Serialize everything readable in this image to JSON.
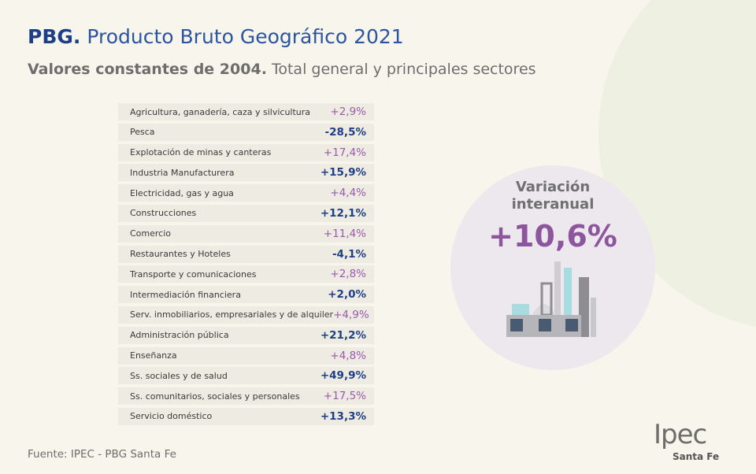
{
  "header": {
    "title_bold": "PBG.",
    "title_rest": "Producto Bruto Geográfico 2021",
    "subtitle_bold": "Valores constantes de 2004.",
    "subtitle_rest": "Total general y principales sectores"
  },
  "table": {
    "rows": [
      [
        "Agricultura, ganadería, caza y silvicultura",
        "+2,9%"
      ],
      [
        "Pesca",
        "-28,5%"
      ],
      [
        "Explotación de minas y canteras",
        "+17,4%"
      ],
      [
        "Industria Manufacturera",
        "+15,9%"
      ],
      [
        "Electricidad, gas y agua",
        "+4,4%"
      ],
      [
        "Construcciones",
        "+12,1%"
      ],
      [
        "Comercio",
        "+11,4%"
      ],
      [
        "Restaurantes y Hoteles",
        "-4,1%"
      ],
      [
        "Transporte y comunicaciones",
        "+2,8%"
      ],
      [
        "Intermediación financiera",
        "+2,0%"
      ],
      [
        "Serv. inmobiliarios, empresariales y de alquiler",
        "+4,9%"
      ],
      [
        "Administración pública",
        "+21,2%"
      ],
      [
        "Enseñanza",
        "+4,8%"
      ],
      [
        "Ss. sociales y de salud",
        "+49,9%"
      ],
      [
        "Ss. comunitarios, sociales y personales",
        "+17,5%"
      ],
      [
        "Servicio doméstico",
        "+13,3%"
      ]
    ]
  },
  "highlight": {
    "label": "Variación interanual",
    "value": "+10,6%"
  },
  "footer": {
    "source": "Fuente: IPEC - PBG Santa Fe",
    "logo": "Ipec",
    "logo_sub": "Santa Fe"
  }
}
